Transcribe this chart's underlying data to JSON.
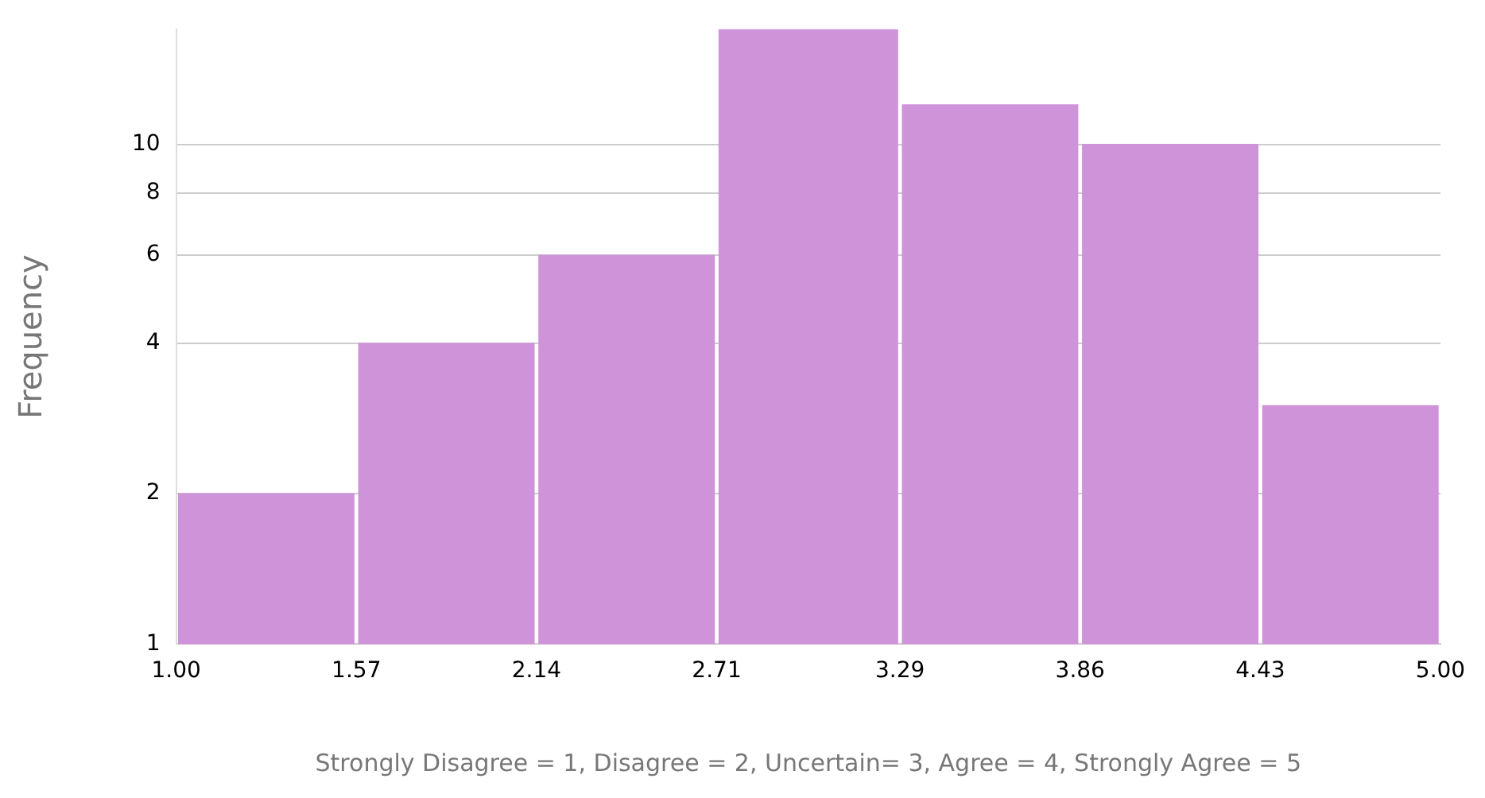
{
  "chart_data": {
    "type": "histogram",
    "xlabel": "Strongly Disagree = 1, Disagree = 2, Uncertain= 3, Agree = 4, Strongly Agree = 5",
    "ylabel": "Frequency",
    "bins": [
      1.0,
      1.57,
      2.14,
      2.71,
      3.29,
      3.86,
      4.43,
      5.0
    ],
    "values": [
      2,
      4,
      6,
      17,
      12,
      10,
      3
    ],
    "color": "#ce93d8",
    "log": "y",
    "grid": "y",
    "legend": false,
    "xlim": [
      1.0,
      5.0
    ],
    "xticks": [
      {
        "value": 1.0,
        "label": "1.00"
      },
      {
        "value": 1.57,
        "label": "1.57"
      },
      {
        "value": 2.14,
        "label": "2.14"
      },
      {
        "value": 2.71,
        "label": "2.71"
      },
      {
        "value": 3.29,
        "label": "3.29"
      },
      {
        "value": 3.86,
        "label": "3.86"
      },
      {
        "value": 4.43,
        "label": "4.43"
      },
      {
        "value": 5.0,
        "label": "5.00"
      }
    ],
    "ylim": [
      1,
      17
    ],
    "yticks": [
      1,
      2,
      4,
      6,
      8,
      10
    ]
  }
}
